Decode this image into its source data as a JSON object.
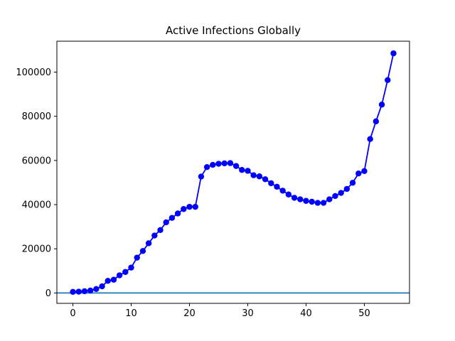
{
  "chart_data": {
    "type": "line",
    "title": "Active Infections Globally",
    "xlabel": "",
    "ylabel": "",
    "xlim": [
      -2.75,
      57.75
    ],
    "ylim": [
      -4700,
      114000
    ],
    "xticks": [
      0,
      10,
      20,
      30,
      40,
      50
    ],
    "yticks": [
      0,
      20000,
      40000,
      60000,
      80000,
      100000
    ],
    "grid": false,
    "legend": "none",
    "series": [
      {
        "color": "#0000ff",
        "marker": "circle",
        "x": [
          0,
          1,
          2,
          3,
          4,
          5,
          6,
          7,
          8,
          9,
          10,
          11,
          12,
          13,
          14,
          15,
          16,
          17,
          18,
          19,
          20,
          21,
          22,
          23,
          24,
          25,
          26,
          27,
          28,
          29,
          30,
          31,
          32,
          33,
          34,
          35,
          36,
          37,
          38,
          39,
          40,
          41,
          42,
          43,
          44,
          45,
          46,
          47,
          48,
          49,
          50,
          51,
          52,
          53,
          54,
          55
        ],
        "values": [
          500,
          600,
          800,
          1100,
          1800,
          3000,
          5500,
          6000,
          8000,
          9500,
          11500,
          16000,
          19000,
          22500,
          26000,
          28500,
          32000,
          34000,
          36000,
          38000,
          39000,
          39000,
          52700,
          57000,
          58000,
          58500,
          58700,
          58800,
          57500,
          55700,
          55300,
          53300,
          52800,
          51500,
          49700,
          48100,
          46300,
          44600,
          43100,
          42400,
          41700,
          41300,
          40800,
          40800,
          42400,
          43900,
          45300,
          47100,
          49900,
          54100,
          55200,
          69700,
          77700,
          85300,
          96400,
          108500
        ]
      }
    ],
    "hline": {
      "y": 0,
      "color": "#1f77b4"
    }
  }
}
